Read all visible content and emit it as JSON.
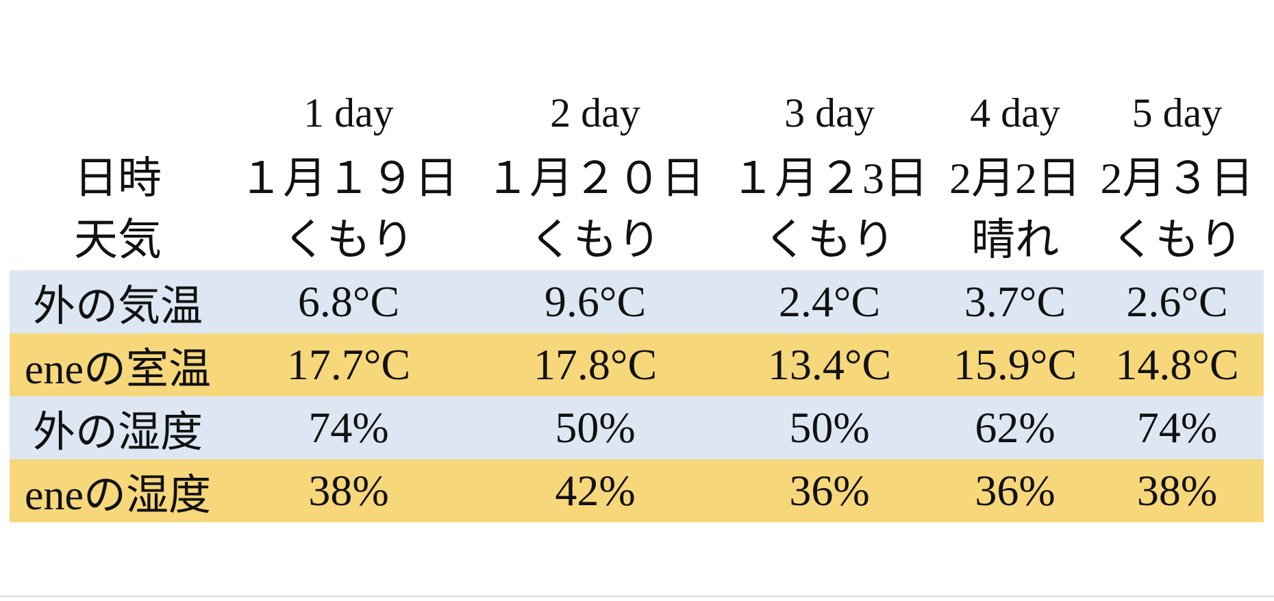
{
  "header": {
    "label_date": "日時",
    "label_weather": "天気",
    "days": [
      "1 day",
      "2 day",
      "3 day",
      "4 day",
      "5 day"
    ],
    "dates": [
      "１月１９日",
      "１月２０日",
      "１月２3日",
      "2月2日",
      "2月３日"
    ],
    "weather": [
      "くもり",
      "くもり",
      "くもり",
      "晴れ",
      "くもり"
    ]
  },
  "table": {
    "rows": [
      [
        "外の気温",
        "6.8°C",
        "9.6°C",
        "2.4°C",
        "3.7°C",
        "2.6°C"
      ],
      [
        "eneの室温",
        "17.7°C",
        "17.8°C",
        "13.4°C",
        "15.9°C",
        "14.8°C"
      ],
      [
        "外の湿度",
        "74%",
        "50%",
        "50%",
        "62%",
        "74%"
      ],
      [
        "eneの湿度",
        "38%",
        "42%",
        "36%",
        "36%",
        "38%"
      ]
    ]
  }
}
